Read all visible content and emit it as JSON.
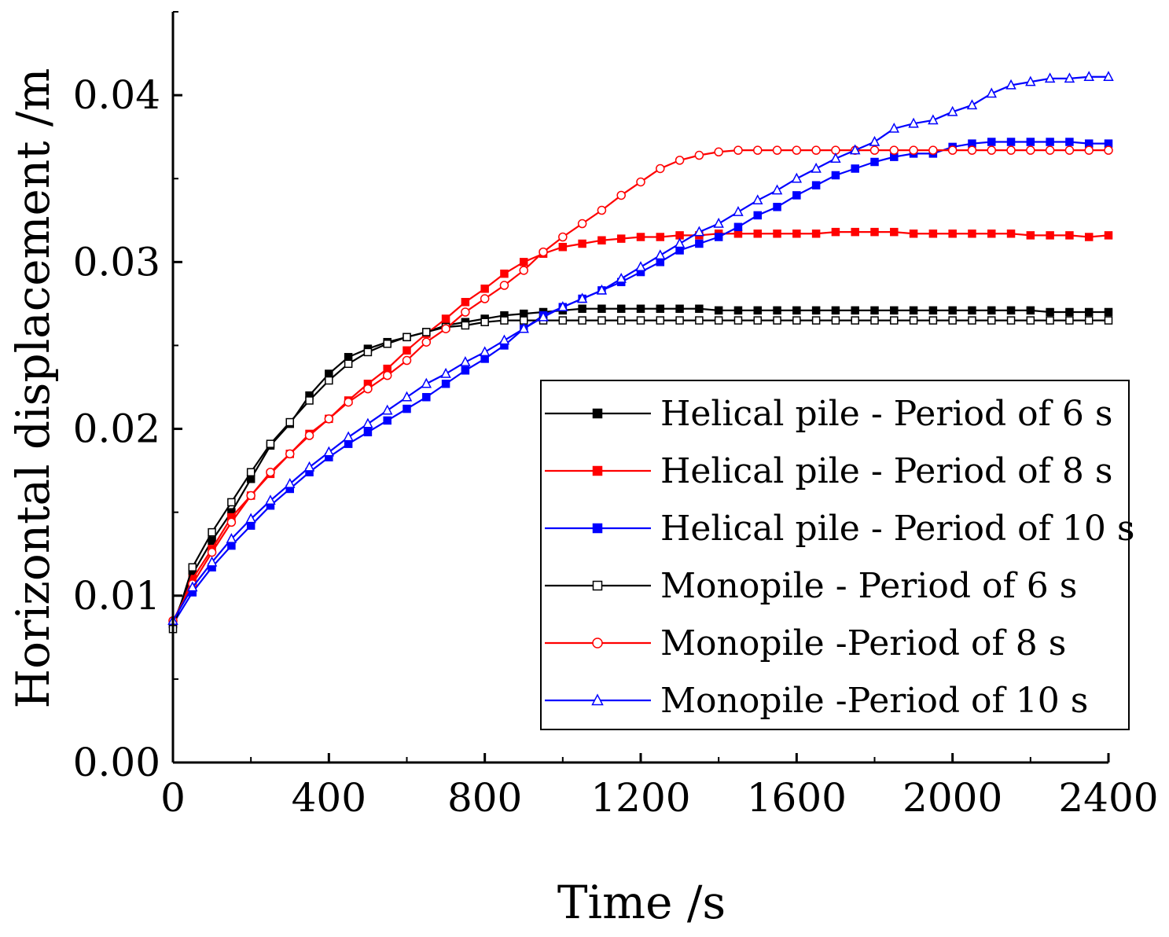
{
  "chart_data": {
    "type": "line",
    "title": "",
    "xlabel": "Time /s",
    "ylabel": "Horizontal displacement /m",
    "xlim": [
      0,
      2400
    ],
    "ylim": [
      0,
      0.045
    ],
    "xticks": [
      0,
      400,
      800,
      1200,
      1600,
      2000,
      2400
    ],
    "xtick_labels": [
      "0",
      "400",
      "800",
      "1200",
      "1600",
      "2000",
      "2400"
    ],
    "yticks": [
      0,
      0.01,
      0.02,
      0.03,
      0.04
    ],
    "ytick_labels": [
      "0.00",
      "0.01",
      "0.02",
      "0.03",
      "0.04"
    ],
    "grid": false,
    "legend_position": "lower-right",
    "x": [
      0,
      50,
      100,
      150,
      200,
      250,
      300,
      350,
      400,
      450,
      500,
      550,
      600,
      650,
      700,
      750,
      800,
      850,
      900,
      950,
      1000,
      1050,
      1100,
      1150,
      1200,
      1250,
      1300,
      1350,
      1400,
      1450,
      1500,
      1550,
      1600,
      1650,
      1700,
      1750,
      1800,
      1850,
      1900,
      1950,
      2000,
      2050,
      2100,
      2150,
      2200,
      2250,
      2300,
      2350,
      2400
    ],
    "series": [
      {
        "name": "Helical pile - Period of 6 s",
        "color": "#000000",
        "marker": "square-filled",
        "values": [
          0.0083,
          0.0113,
          0.0133,
          0.015,
          0.017,
          0.019,
          0.0203,
          0.022,
          0.0233,
          0.0243,
          0.0248,
          0.0252,
          0.0255,
          0.0258,
          0.0262,
          0.0264,
          0.0266,
          0.0268,
          0.0269,
          0.027,
          0.0271,
          0.0272,
          0.0272,
          0.0272,
          0.0272,
          0.0272,
          0.0272,
          0.0272,
          0.0271,
          0.0271,
          0.0271,
          0.0271,
          0.0271,
          0.0271,
          0.0271,
          0.0271,
          0.0271,
          0.0271,
          0.0271,
          0.0271,
          0.0271,
          0.0271,
          0.0271,
          0.0271,
          0.0271,
          0.027,
          0.027,
          0.027,
          0.027
        ]
      },
      {
        "name": "Helical pile - Period of 8 s",
        "color": "#ff0000",
        "marker": "square-filled",
        "values": [
          0.0083,
          0.011,
          0.0128,
          0.0147,
          0.016,
          0.0173,
          0.0185,
          0.0197,
          0.0206,
          0.0217,
          0.0227,
          0.0236,
          0.0247,
          0.0257,
          0.0266,
          0.0276,
          0.0284,
          0.0293,
          0.03,
          0.0305,
          0.0309,
          0.0311,
          0.0313,
          0.0314,
          0.0315,
          0.0315,
          0.0316,
          0.0316,
          0.0317,
          0.0317,
          0.0317,
          0.0317,
          0.0317,
          0.0317,
          0.0318,
          0.0318,
          0.0318,
          0.0318,
          0.0317,
          0.0317,
          0.0317,
          0.0317,
          0.0317,
          0.0317,
          0.0316,
          0.0316,
          0.0316,
          0.0315,
          0.0316
        ]
      },
      {
        "name": "Helical pile - Period of 10 s",
        "color": "#0000ff",
        "marker": "square-filled",
        "values": [
          0.0083,
          0.0102,
          0.0117,
          0.013,
          0.0142,
          0.0154,
          0.0164,
          0.0174,
          0.0183,
          0.0191,
          0.0198,
          0.0205,
          0.0212,
          0.0219,
          0.0227,
          0.0235,
          0.0242,
          0.025,
          0.026,
          0.0268,
          0.0273,
          0.0278,
          0.0283,
          0.0288,
          0.0294,
          0.03,
          0.0307,
          0.0311,
          0.0315,
          0.0321,
          0.0328,
          0.0333,
          0.034,
          0.0346,
          0.0352,
          0.0356,
          0.036,
          0.0363,
          0.0365,
          0.0365,
          0.0369,
          0.0371,
          0.0372,
          0.0372,
          0.0372,
          0.0372,
          0.0372,
          0.0371,
          0.0371
        ]
      },
      {
        "name": "Monopile - Period of 6 s",
        "color": "#000000",
        "marker": "square-open",
        "values": [
          0.008,
          0.0117,
          0.0138,
          0.0156,
          0.0174,
          0.0191,
          0.0204,
          0.0217,
          0.0229,
          0.0239,
          0.0246,
          0.0251,
          0.0255,
          0.0258,
          0.0261,
          0.0262,
          0.0264,
          0.0265,
          0.0265,
          0.0265,
          0.0265,
          0.0265,
          0.0265,
          0.0265,
          0.0265,
          0.0265,
          0.0265,
          0.0265,
          0.0265,
          0.0265,
          0.0265,
          0.0265,
          0.0265,
          0.0265,
          0.0265,
          0.0265,
          0.0265,
          0.0265,
          0.0265,
          0.0265,
          0.0265,
          0.0265,
          0.0265,
          0.0265,
          0.0265,
          0.0265,
          0.0265,
          0.0265,
          0.0265
        ]
      },
      {
        "name": "Monopile -Period of 8 s",
        "color": "#ff0000",
        "marker": "circle-open",
        "values": [
          0.0085,
          0.0107,
          0.0126,
          0.0144,
          0.016,
          0.0174,
          0.0185,
          0.0196,
          0.0206,
          0.0216,
          0.0224,
          0.0232,
          0.0241,
          0.0252,
          0.026,
          0.027,
          0.0278,
          0.0286,
          0.0295,
          0.0306,
          0.0315,
          0.0323,
          0.0331,
          0.034,
          0.0348,
          0.0356,
          0.0361,
          0.0364,
          0.0366,
          0.0367,
          0.0367,
          0.0367,
          0.0367,
          0.0367,
          0.0367,
          0.0367,
          0.0367,
          0.0367,
          0.0367,
          0.0367,
          0.0367,
          0.0367,
          0.0367,
          0.0367,
          0.0367,
          0.0367,
          0.0367,
          0.0367,
          0.0367
        ]
      },
      {
        "name": "Monopile -Period of 10 s",
        "color": "#0000ff",
        "marker": "triangle-open",
        "values": [
          0.0085,
          0.0105,
          0.012,
          0.0134,
          0.0146,
          0.0157,
          0.0167,
          0.0177,
          0.0186,
          0.0195,
          0.0203,
          0.0211,
          0.0219,
          0.0227,
          0.0233,
          0.024,
          0.0246,
          0.0253,
          0.026,
          0.0267,
          0.0273,
          0.0278,
          0.0283,
          0.029,
          0.0297,
          0.0304,
          0.0311,
          0.0318,
          0.0323,
          0.033,
          0.0337,
          0.0343,
          0.035,
          0.0356,
          0.0362,
          0.0367,
          0.0372,
          0.038,
          0.0383,
          0.0385,
          0.039,
          0.0394,
          0.0401,
          0.0406,
          0.0408,
          0.041,
          0.041,
          0.0411,
          0.0411
        ]
      }
    ]
  }
}
